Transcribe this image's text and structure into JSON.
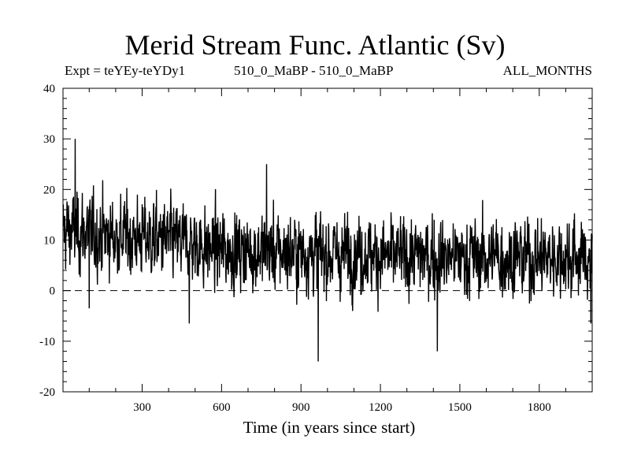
{
  "chart_data": {
    "type": "line",
    "title": "Merid Stream Func. Atlantic (Sv)",
    "subtitle_left": "Expt = teYEy-teYDy1",
    "subtitle_center": "510_0_MaBP - 510_0_MaBP",
    "subtitle_right": "ALL_MONTHS",
    "xlabel": "Time (in years since start)",
    "ylabel": "",
    "xlim": [
      1,
      2000
    ],
    "ylim": [
      -20,
      40
    ],
    "xticks": [
      300,
      600,
      900,
      1200,
      1500,
      1800
    ],
    "yticks": [
      -20,
      -10,
      0,
      10,
      20,
      30,
      40
    ],
    "reference_line": {
      "y": 0,
      "style": "dashed"
    },
    "series": [
      {
        "name": "Merid Stream Func. Atlantic",
        "n_points": 2000,
        "mean_profile": [
          {
            "x": 1,
            "mean": 12
          },
          {
            "x": 150,
            "mean": 11
          },
          {
            "x": 380,
            "mean": 10
          },
          {
            "x": 600,
            "mean": 8
          },
          {
            "x": 1200,
            "mean": 7
          },
          {
            "x": 2000,
            "mean": 6.5
          }
        ],
        "std": 4.2,
        "extremes": [
          {
            "x": 47,
            "y": 30
          },
          {
            "x": 100,
            "y": -3.5
          },
          {
            "x": 478,
            "y": -6.5
          },
          {
            "x": 770,
            "y": 25
          },
          {
            "x": 965,
            "y": -14
          },
          {
            "x": 1415,
            "y": -12
          },
          {
            "x": 1995,
            "y": -6.5
          }
        ]
      }
    ]
  }
}
